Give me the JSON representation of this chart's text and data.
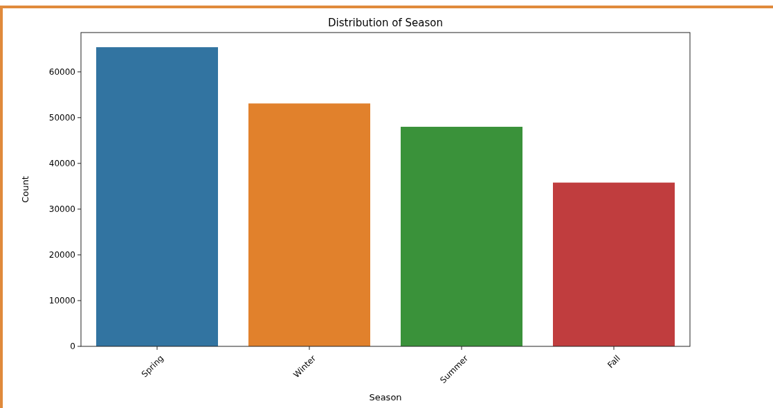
{
  "chart_data": {
    "type": "bar",
    "title": "Distribution of Season",
    "xlabel": "Season",
    "ylabel": "Count",
    "categories": [
      "Spring",
      "Winter",
      "Summer",
      "Fall"
    ],
    "values": [
      65400,
      53100,
      48000,
      35800
    ],
    "colors": [
      "#3274a1",
      "#e1812c",
      "#3a923a",
      "#c03d3e"
    ],
    "ylim": [
      0,
      68600
    ],
    "yticks": [
      0,
      10000,
      20000,
      30000,
      40000,
      50000,
      60000
    ],
    "grid": false
  }
}
